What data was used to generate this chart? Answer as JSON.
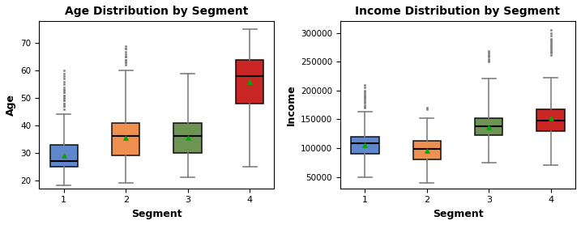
{
  "title_age": "Age Distribution by Segment",
  "title_income": "Income Distribution by Segment",
  "xlabel": "Segment",
  "ylabel_age": "Age",
  "ylabel_income": "Income",
  "segments": [
    1,
    2,
    3,
    4
  ],
  "box_colors": [
    "#4472c4",
    "#ed7d31",
    "#548235",
    "#c00000"
  ],
  "mean_marker_color": "#00aa00",
  "mean_marker": "^",
  "age_boxes": [
    {
      "med": 27,
      "q1": 25,
      "q3": 33,
      "whislo": 18,
      "whishi": 44,
      "mean": 29,
      "fliers": [
        46,
        47,
        47,
        48,
        48,
        49,
        49,
        50,
        50,
        51,
        51,
        52,
        52,
        53,
        53,
        54,
        55,
        56,
        57,
        58,
        59,
        60
      ]
    },
    {
      "med": 36,
      "q1": 29,
      "q3": 41,
      "whislo": 19,
      "whishi": 60,
      "mean": 35.5,
      "fliers": [
        62,
        63,
        63,
        64,
        64,
        65,
        65,
        66,
        67,
        68,
        68,
        69
      ]
    },
    {
      "med": 36,
      "q1": 30,
      "q3": 41,
      "whislo": 21,
      "whishi": 59,
      "mean": 35.5,
      "fliers": []
    },
    {
      "med": 58,
      "q1": 48,
      "q3": 64,
      "whislo": 25,
      "whishi": 75,
      "mean": 56,
      "fliers": []
    }
  ],
  "income_boxes": [
    {
      "med": 108000,
      "q1": 90000,
      "q3": 120000,
      "whislo": 50000,
      "whishi": 163000,
      "mean": 105000,
      "fliers": [
        170000,
        172000,
        175000,
        178000,
        180000,
        183000,
        185000,
        188000,
        190000,
        192000,
        195000,
        198000,
        200000,
        205000,
        210000
      ]
    },
    {
      "med": 98000,
      "q1": 80000,
      "q3": 113000,
      "whislo": 40000,
      "whishi": 152000,
      "mean": 95000,
      "fliers": [
        168000,
        170000
      ]
    },
    {
      "med": 138000,
      "q1": 123000,
      "q3": 152000,
      "whislo": 75000,
      "whishi": 220000,
      "mean": 137000,
      "fliers": [
        250000,
        252000,
        255000,
        258000,
        260000,
        263000,
        265000,
        268000
      ]
    },
    {
      "med": 148000,
      "q1": 130000,
      "q3": 168000,
      "whislo": 70000,
      "whishi": 222000,
      "mean": 152000,
      "fliers": [
        262000,
        265000,
        267000,
        270000,
        272000,
        275000,
        277000,
        280000,
        283000,
        285000,
        288000,
        290000,
        295000,
        300000,
        305000
      ]
    }
  ],
  "age_ylim": [
    17,
    78
  ],
  "income_ylim": [
    30000,
    320000
  ],
  "figsize": [
    7.17,
    2.78
  ],
  "dpi": 100
}
